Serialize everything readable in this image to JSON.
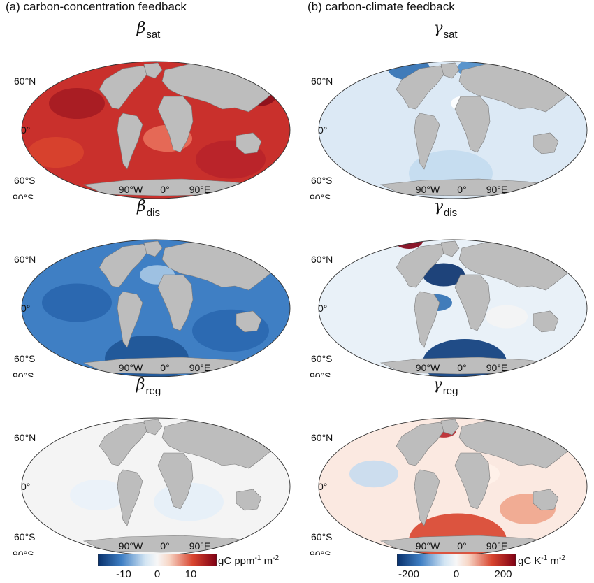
{
  "columns": [
    {
      "label": "(a) carbon-concentration feedback"
    },
    {
      "label": "(b) carbon-climate feedback"
    }
  ],
  "panels": [
    {
      "symbol": "β",
      "sub": "sat",
      "scheme": "beta_sat"
    },
    {
      "symbol": "γ",
      "sub": "sat",
      "scheme": "gamma_sat"
    },
    {
      "symbol": "β",
      "sub": "dis",
      "scheme": "beta_dis"
    },
    {
      "symbol": "γ",
      "sub": "dis",
      "scheme": "gamma_dis"
    },
    {
      "symbol": "β",
      "sub": "reg",
      "scheme": "beta_reg"
    },
    {
      "symbol": "γ",
      "sub": "reg",
      "scheme": "gamma_reg"
    }
  ],
  "axes": {
    "lat_labels": [
      "60°N",
      "0°",
      "60°S",
      "90°S"
    ],
    "lon_labels": [
      "90°W",
      "0°",
      "90°E"
    ]
  },
  "colorbars": [
    {
      "ticks": [
        "-10",
        "0",
        "10"
      ],
      "unit_base": "gC ppm",
      "unit_exp1": "-1",
      "unit_mid": " m",
      "unit_exp2": "-2"
    },
    {
      "ticks": [
        "-200",
        "0",
        "200"
      ],
      "unit_base": "gC K",
      "unit_exp1": "-1",
      "unit_mid": " m",
      "unit_exp2": "-2"
    }
  ],
  "colors": {
    "land": "#bdbdbd",
    "neg_dark": "#08306b",
    "neg_mid": "#3f7fc4",
    "neg_light": "#d3e5f3",
    "neutral": "#f7f7f7",
    "pos_light": "#f7d6c6",
    "pos_mid": "#d8442e",
    "pos_dark": "#7f0014"
  }
}
